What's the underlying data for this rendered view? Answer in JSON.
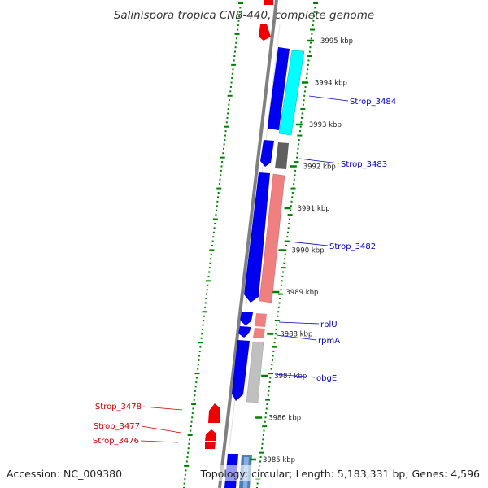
{
  "title": "Salinispora tropica CNB-440, complete genome",
  "footer": {
    "accession": "Accession: NC_009380",
    "topology": "Topology: circular; Length: 5,183,331 bp; Genes: 4,596"
  },
  "ticks": [
    "3995 kbp",
    "3994 kbp",
    "3993 kbp",
    "3992 kbp",
    "3991 kbp",
    "3990 kbp",
    "3989 kbp",
    "3988 kbp",
    "3987 kbp",
    "3986 kbp",
    "3985 kbp"
  ],
  "genes_forward": [
    "Strop_3484",
    "Strop_3483",
    "Strop_3482",
    "rplU",
    "rpmA",
    "obgE"
  ],
  "genes_reverse": [
    "Strop_3478",
    "Strop_3477",
    "Strop_3476"
  ],
  "colors": {
    "forward_label": "#0000cc",
    "reverse_label": "#cc0000",
    "cds": "#0000ee",
    "rna_cyan": "#00ffff",
    "salmon": "#f08080",
    "grey_dark": "#606060",
    "grey_light": "#c0c0c0",
    "gc_dots": "#008000",
    "backbone": "#808080"
  }
}
